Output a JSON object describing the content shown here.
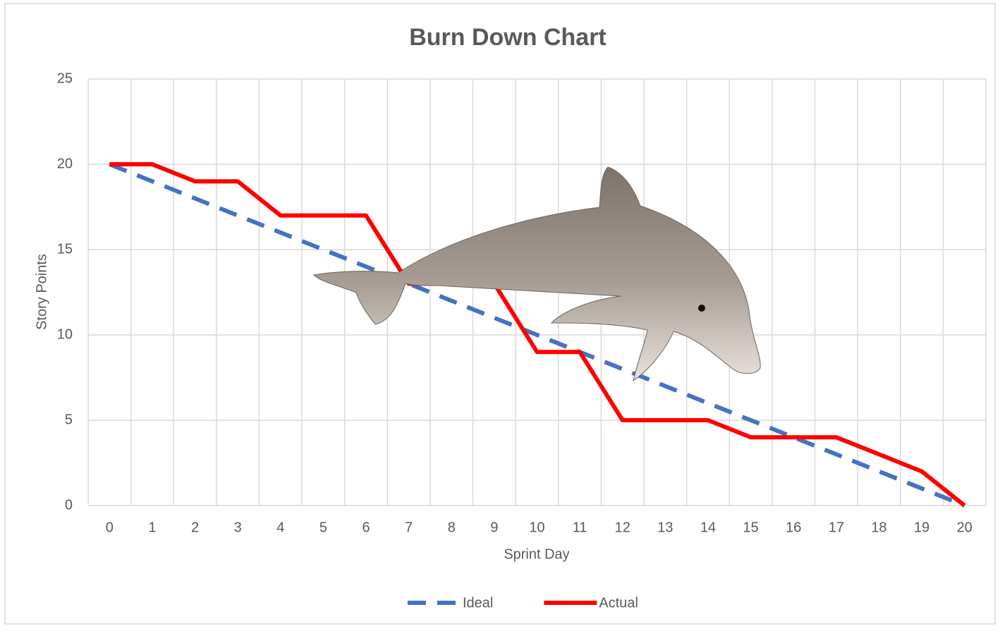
{
  "chart_data": {
    "type": "line",
    "title": "Burn Down Chart",
    "x_label": "Sprint Day",
    "y_label": "Story Points",
    "categories": [
      "0",
      "1",
      "2",
      "3",
      "4",
      "5",
      "6",
      "7",
      "8",
      "9",
      "10",
      "11",
      "12",
      "13",
      "14",
      "15",
      "16",
      "17",
      "18",
      "19",
      "20"
    ],
    "series": [
      {
        "name": "Ideal",
        "color": "#4472c4",
        "dashed": true,
        "values": [
          20,
          19,
          18,
          17,
          16,
          15,
          14,
          13,
          12,
          11,
          10,
          9,
          8,
          7,
          6,
          5,
          4,
          3,
          2,
          1,
          0
        ]
      },
      {
        "name": "Actual",
        "color": "#ff0000",
        "dashed": false,
        "values": [
          20,
          20,
          19,
          19,
          17,
          17,
          17,
          13,
          13,
          13,
          9,
          9,
          5,
          5,
          5,
          4,
          4,
          4,
          3,
          2,
          0
        ]
      }
    ],
    "ylim": [
      0,
      25
    ],
    "yticks": [
      0,
      5,
      10,
      15,
      20,
      25
    ],
    "grid": true,
    "legend": "bottom"
  }
}
